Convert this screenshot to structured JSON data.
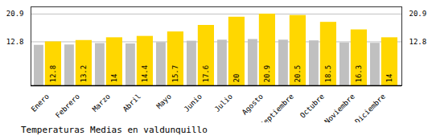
{
  "chart_data": {
    "type": "bar",
    "title": "Temperaturas Medias en valdunquillo",
    "categories": [
      "Enero",
      "Febrero",
      "Marzo",
      "Abril",
      "Mayo",
      "Junio",
      "Julio",
      "Agosto",
      "Septiembre",
      "Octubre",
      "Noviembre",
      "Diciembre"
    ],
    "series": [
      {
        "color": "#C0C0C0",
        "values": [
          11.8,
          11.9,
          12.3,
          12.2,
          12.6,
          13.0,
          13.3,
          13.5,
          13.3,
          13.1,
          12.5,
          12.4
        ]
      },
      {
        "color": "#FFD700",
        "data_labels": true,
        "values": [
          12.8,
          13.2,
          14.0,
          14.4,
          15.7,
          17.6,
          20.0,
          20.9,
          20.5,
          18.5,
          16.3,
          14.0
        ]
      }
    ],
    "ylim": [
      0,
      23.0
    ],
    "yticks": [
      12.8,
      20.9
    ],
    "grid": true
  }
}
